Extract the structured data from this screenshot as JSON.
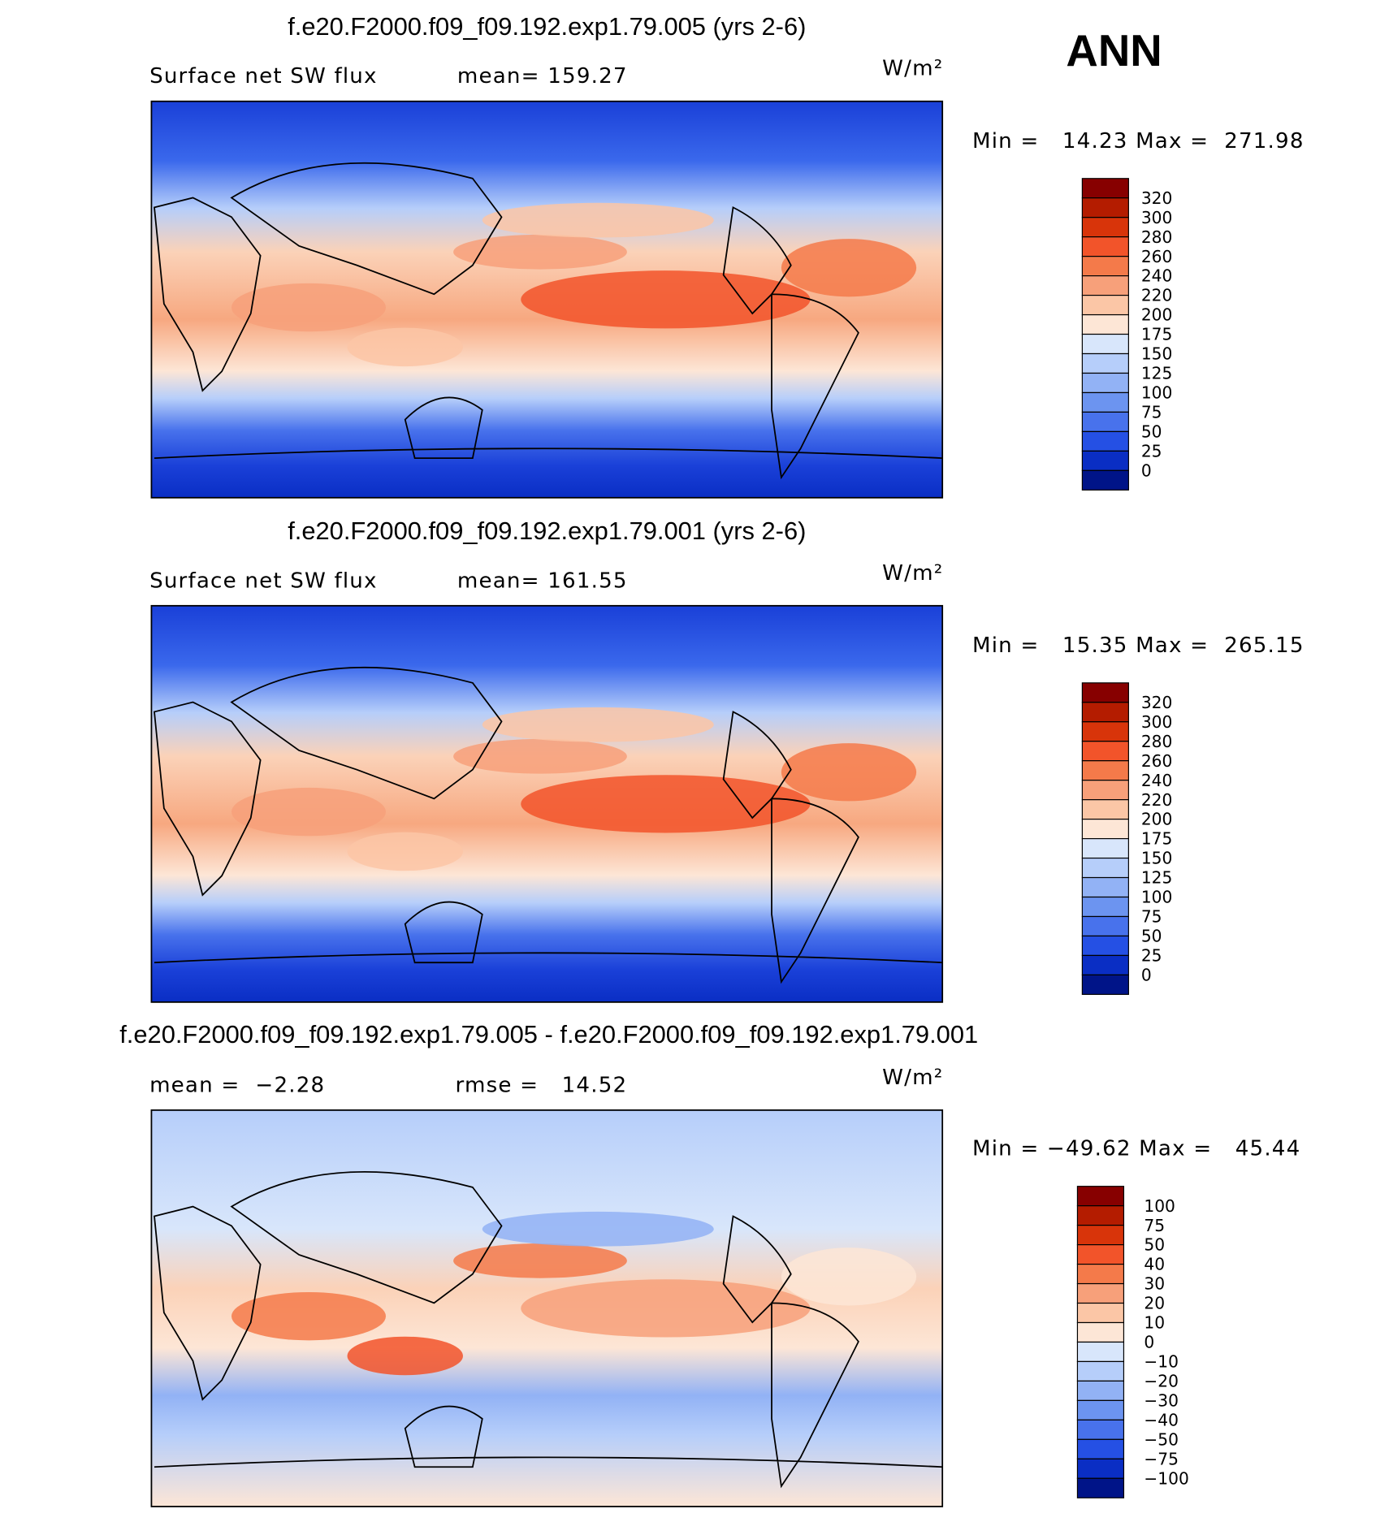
{
  "header": {
    "season": "ANN"
  },
  "panels": [
    {
      "title": "f.e20.F2000.f09_f09.192.exp1.79.005 (yrs 2-6)",
      "stats": [
        "Surface net SW flux",
        "mean= 159.27"
      ],
      "units": "W/m²",
      "minmax": "Min =   14.23 Max =  271.98",
      "colorbar": {
        "labels": [
          "320",
          "300",
          "280",
          "260",
          "240",
          "220",
          "200",
          "175",
          "150",
          "125",
          "100",
          "75",
          "50",
          "25",
          "0"
        ],
        "colors": [
          "#870000",
          "#b41c00",
          "#d8340a",
          "#f2542a",
          "#f47a4a",
          "#f7a07a",
          "#fbc6a6",
          "#fde6d6",
          "#d8e6fb",
          "#b6cefa",
          "#92b2f5",
          "#6c94f0",
          "#4872ec",
          "#2550e4",
          "#0a2ec4",
          "#001488"
        ]
      }
    },
    {
      "title": "f.e20.F2000.f09_f09.192.exp1.79.001 (yrs 2-6)",
      "stats": [
        "Surface net SW flux",
        "mean= 161.55"
      ],
      "units": "W/m²",
      "minmax": "Min =   15.35 Max =  265.15",
      "colorbar": {
        "labels": [
          "320",
          "300",
          "280",
          "260",
          "240",
          "220",
          "200",
          "175",
          "150",
          "125",
          "100",
          "75",
          "50",
          "25",
          "0"
        ],
        "colors": [
          "#870000",
          "#b41c00",
          "#d8340a",
          "#f2542a",
          "#f47a4a",
          "#f7a07a",
          "#fbc6a6",
          "#fde6d6",
          "#d8e6fb",
          "#b6cefa",
          "#92b2f5",
          "#6c94f0",
          "#4872ec",
          "#2550e4",
          "#0a2ec4",
          "#001488"
        ]
      }
    },
    {
      "title": "f.e20.F2000.f09_f09.192.exp1.79.005 - f.e20.F2000.f09_f09.192.exp1.79.001",
      "stats": [
        "mean =  −2.28",
        "rmse =   14.52"
      ],
      "units": "W/m²",
      "minmax": "Min = −49.62 Max =   45.44",
      "colorbar": {
        "labels": [
          "100",
          "75",
          "50",
          "40",
          "30",
          "20",
          "10",
          "0",
          "−10",
          "−20",
          "−30",
          "−40",
          "−50",
          "−75",
          "−100"
        ],
        "colors": [
          "#870000",
          "#b41c00",
          "#d8340a",
          "#f2542a",
          "#f47a4a",
          "#f7a07a",
          "#fbc6a6",
          "#fde6d6",
          "#d8e6fb",
          "#b6cefa",
          "#92b2f5",
          "#6c94f0",
          "#4872ec",
          "#2550e4",
          "#0a2ec4",
          "#001488"
        ]
      }
    }
  ]
}
